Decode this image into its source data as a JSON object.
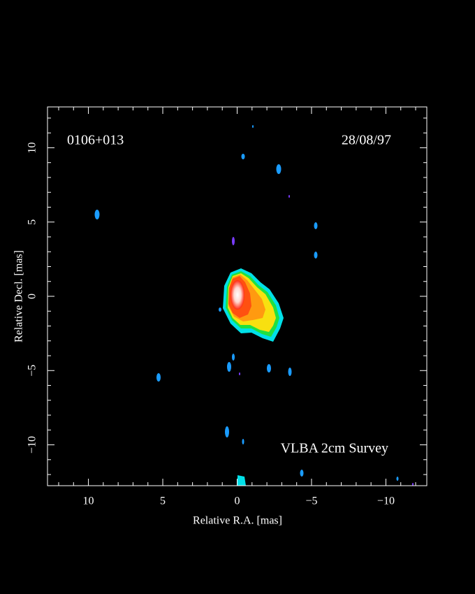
{
  "chart_data": {
    "type": "image",
    "title": "0106+013",
    "subtitle": "28/08/97",
    "annotation": "VLBA 2cm Survey",
    "xlabel": "Relative R.A. [mas]",
    "ylabel": "Relative Decl. [mas]",
    "xlim": [
      12.75,
      -12.75
    ],
    "ylim": [
      -12.75,
      12.75
    ],
    "xticks": [
      10,
      5,
      0,
      {
        "value": -5,
        "label": "−5"
      },
      {
        "value": -10,
        "label": "−10"
      }
    ],
    "yticks": [
      {
        "value": -10,
        "label": "−10"
      },
      {
        "value": -5,
        "label": "−5"
      },
      0,
      5,
      10
    ],
    "xminorticks": [
      12,
      11,
      9,
      8,
      7,
      6,
      4,
      3,
      2,
      1,
      -1,
      -2,
      -3,
      -4,
      -6,
      -7,
      -8,
      -9,
      -11,
      -12
    ],
    "yminorticks": [
      -12,
      -11,
      -9,
      -8,
      -7,
      -6,
      -4,
      -3,
      -2,
      -1,
      1,
      2,
      3,
      4,
      6,
      7,
      8,
      9,
      11,
      12
    ],
    "color": "#ffffff"
  }
}
